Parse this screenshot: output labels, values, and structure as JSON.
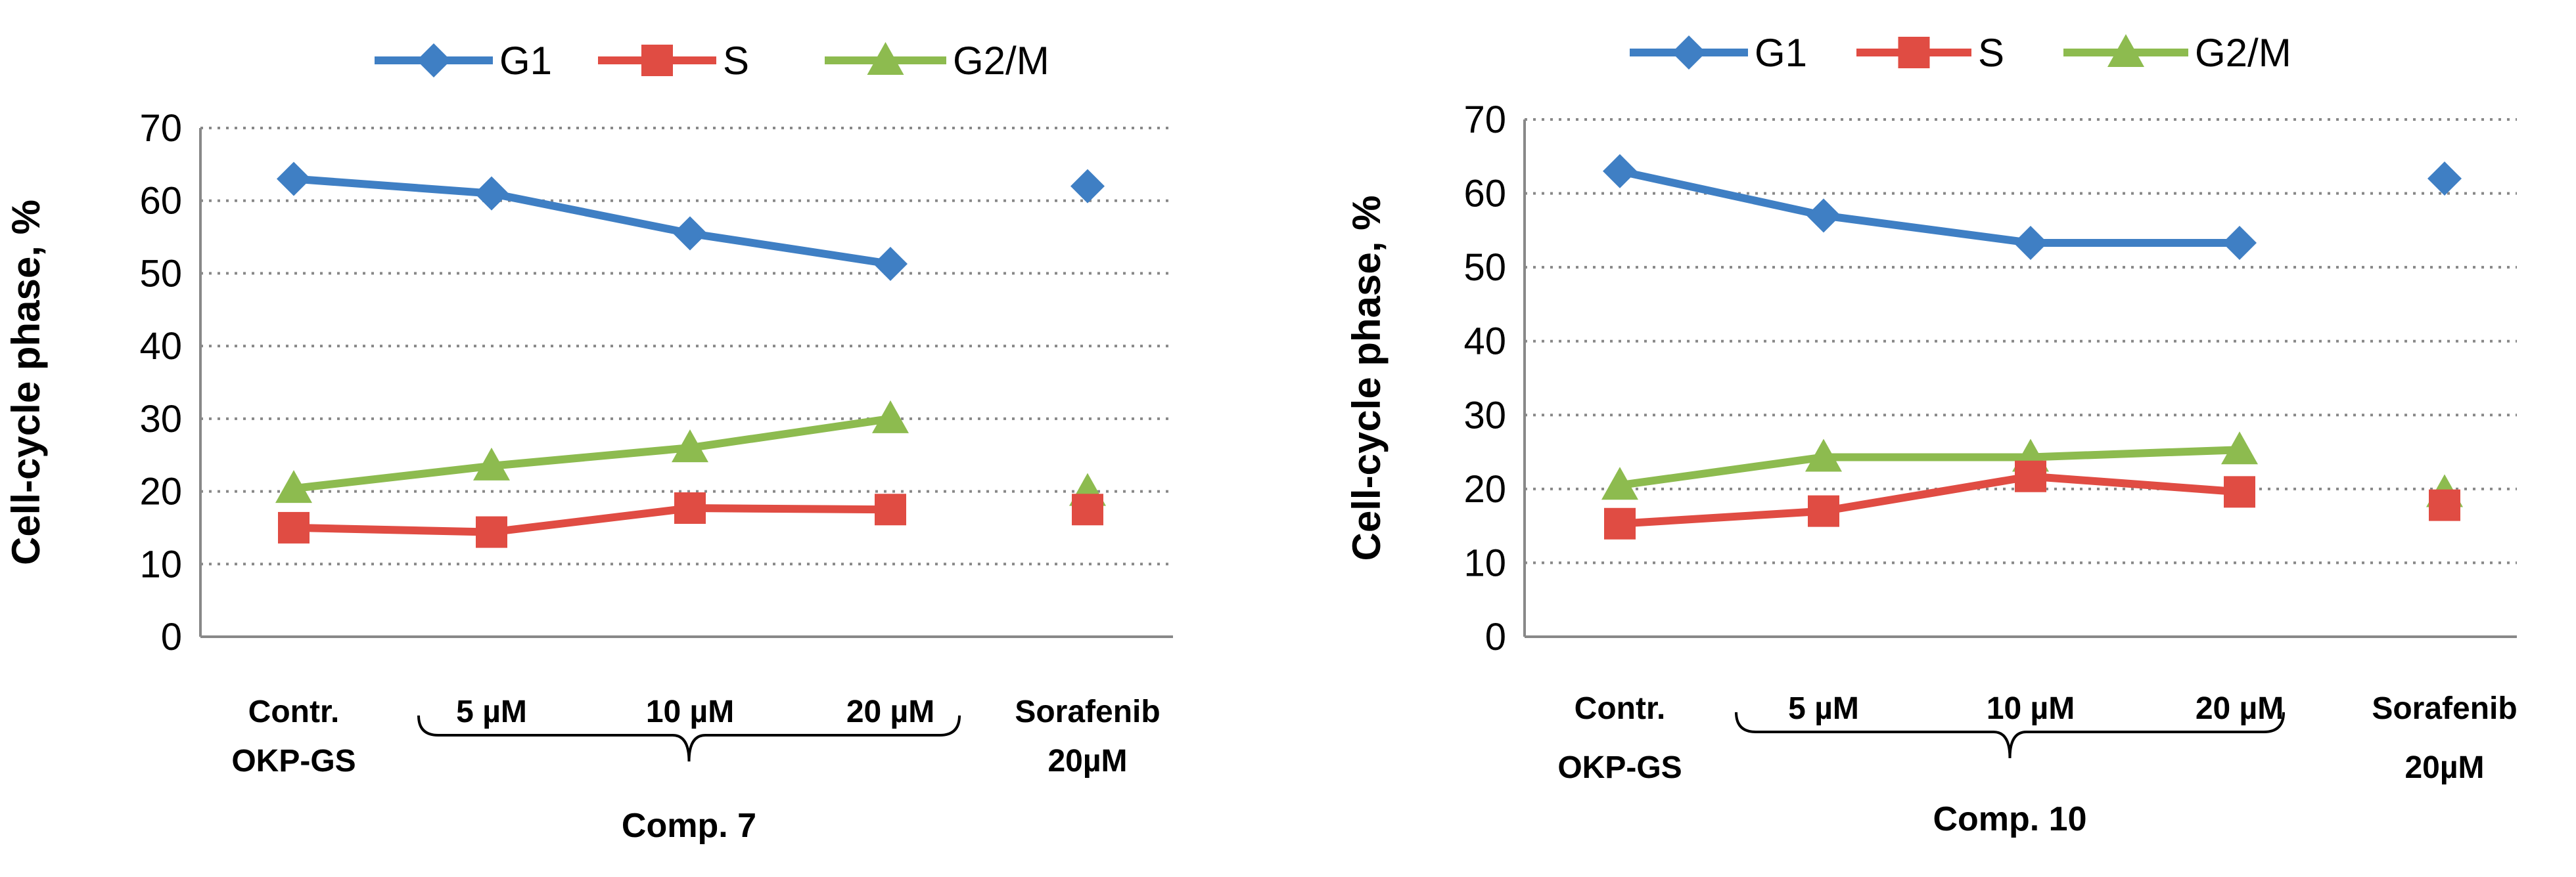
{
  "chart_data": [
    {
      "type": "line",
      "title": "",
      "ylabel": "Cell-cycle phase, %",
      "ylim": [
        0,
        70
      ],
      "yticks": [
        0,
        10,
        20,
        30,
        40,
        50,
        60,
        70
      ],
      "grid": "horizontal dotted",
      "legend_position": "top",
      "categories": [
        [
          "Contr.",
          "OKP-GS"
        ],
        [
          "5 µM"
        ],
        [
          "10 µM"
        ],
        [
          "20 µM"
        ],
        [
          "Sorafenib",
          "20µM"
        ]
      ],
      "group_label": "Comp. 7",
      "series": [
        {
          "name": "G1",
          "color": "#3f7fc4",
          "marker": "diamond",
          "values": [
            63,
            61,
            55.5,
            51.3,
            62
          ]
        },
        {
          "name": "S",
          "color": "#e04c43",
          "marker": "square",
          "values": [
            15,
            14.4,
            17.7,
            17.5,
            17.5
          ]
        },
        {
          "name": "G2/M",
          "color": "#8dbb4f",
          "marker": "triangle",
          "values": [
            20.4,
            23.5,
            26,
            30,
            20
          ]
        }
      ]
    },
    {
      "type": "line",
      "title": "",
      "ylabel": "Cell-cycle phase, %",
      "ylim": [
        0,
        70
      ],
      "yticks": [
        0,
        10,
        20,
        30,
        40,
        50,
        60,
        70
      ],
      "grid": "horizontal dotted",
      "legend_position": "top",
      "categories": [
        [
          "Contr.",
          "OKP-GS"
        ],
        [
          "5 µM"
        ],
        [
          "10 µM"
        ],
        [
          "20 µM"
        ],
        [
          "Sorafenib",
          "20µM"
        ]
      ],
      "group_label": "Comp. 10",
      "series": [
        {
          "name": "G1",
          "color": "#3f7fc4",
          "marker": "diamond",
          "values": [
            63,
            57,
            53.3,
            53.3,
            62
          ]
        },
        {
          "name": "S",
          "color": "#e04c43",
          "marker": "square",
          "values": [
            15.3,
            17,
            21.7,
            19.6,
            17.8
          ]
        },
        {
          "name": "G2/M",
          "color": "#8dbb4f",
          "marker": "triangle",
          "values": [
            20.5,
            24.3,
            24.3,
            25.3,
            19.5
          ]
        }
      ]
    }
  ]
}
